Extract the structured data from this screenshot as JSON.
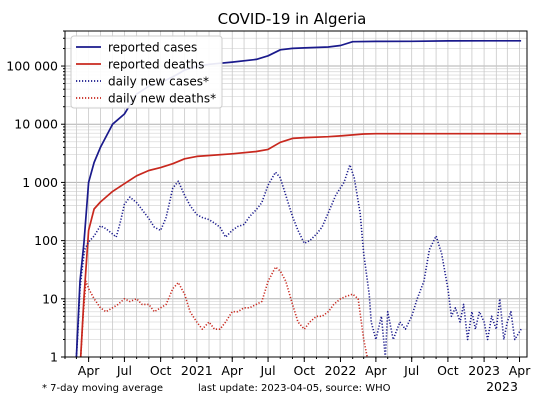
{
  "chart_data": {
    "type": "line",
    "title": "COVID-19 in Algeria",
    "xlabel": "",
    "ylabel": "",
    "y_scale": "log",
    "ylim": [
      1,
      400000
    ],
    "xlim": [
      "2020-02-01",
      "2023-04-20"
    ],
    "grid": true,
    "legend_position": "top-left",
    "y_ticks": [
      {
        "value": 1,
        "label": "1"
      },
      {
        "value": 10,
        "label": "10"
      },
      {
        "value": 100,
        "label": "100"
      },
      {
        "value": 1000,
        "label": "1 000"
      },
      {
        "value": 10000,
        "label": "10 000"
      },
      {
        "value": 100000,
        "label": "100 000"
      }
    ],
    "x_ticks": [
      {
        "date": "2020-04-01",
        "label": "Apr"
      },
      {
        "date": "2020-07-01",
        "label": "Jul"
      },
      {
        "date": "2020-10-01",
        "label": "Oct"
      },
      {
        "date": "2021-01-01",
        "label": "2021"
      },
      {
        "date": "2021-04-01",
        "label": "Apr"
      },
      {
        "date": "2021-07-01",
        "label": "Jul"
      },
      {
        "date": "2021-10-01",
        "label": "Oct"
      },
      {
        "date": "2022-01-01",
        "label": "2022"
      },
      {
        "date": "2022-04-01",
        "label": "Apr"
      },
      {
        "date": "2022-07-01",
        "label": "Jul"
      },
      {
        "date": "2022-10-01",
        "label": "Oct"
      },
      {
        "date": "2023-01-01",
        "label": "2023"
      },
      {
        "date": "2023-04-01",
        "label": "Apr"
      }
    ],
    "x_axis_year_label": "2023",
    "series": [
      {
        "name": "reported cases",
        "color": "#1a1a8c",
        "style": "solid",
        "points": [
          [
            "2020-03-01",
            1
          ],
          [
            "2020-03-10",
            20
          ],
          [
            "2020-03-20",
            90
          ],
          [
            "2020-04-01",
            1000
          ],
          [
            "2020-04-15",
            2200
          ],
          [
            "2020-05-01",
            4000
          ],
          [
            "2020-06-01",
            10000
          ],
          [
            "2020-07-01",
            15000
          ],
          [
            "2020-08-01",
            33000
          ],
          [
            "2020-09-01",
            45000
          ],
          [
            "2020-10-01",
            52000
          ],
          [
            "2020-11-01",
            65000
          ],
          [
            "2020-12-01",
            85000
          ],
          [
            "2021-01-01",
            99000
          ],
          [
            "2021-02-01",
            107000
          ],
          [
            "2021-04-01",
            117000
          ],
          [
            "2021-06-01",
            130000
          ],
          [
            "2021-07-01",
            150000
          ],
          [
            "2021-08-01",
            190000
          ],
          [
            "2021-09-01",
            201000
          ],
          [
            "2021-10-01",
            205000
          ],
          [
            "2021-12-01",
            212000
          ],
          [
            "2022-01-01",
            225000
          ],
          [
            "2022-02-01",
            262000
          ],
          [
            "2022-04-01",
            265000
          ],
          [
            "2022-07-01",
            266000
          ],
          [
            "2022-10-01",
            270000
          ],
          [
            "2023-01-01",
            271000
          ],
          [
            "2023-04-05",
            271800
          ]
        ]
      },
      {
        "name": "reported deaths",
        "color": "#c8281e",
        "style": "solid",
        "points": [
          [
            "2020-03-12",
            1
          ],
          [
            "2020-03-20",
            10
          ],
          [
            "2020-04-01",
            150
          ],
          [
            "2020-04-15",
            350
          ],
          [
            "2020-05-01",
            460
          ],
          [
            "2020-06-01",
            700
          ],
          [
            "2020-07-01",
            950
          ],
          [
            "2020-08-01",
            1300
          ],
          [
            "2020-09-01",
            1600
          ],
          [
            "2020-10-01",
            1800
          ],
          [
            "2020-11-01",
            2100
          ],
          [
            "2020-12-01",
            2550
          ],
          [
            "2021-01-01",
            2800
          ],
          [
            "2021-02-01",
            2900
          ],
          [
            "2021-04-01",
            3100
          ],
          [
            "2021-06-01",
            3400
          ],
          [
            "2021-07-01",
            3700
          ],
          [
            "2021-08-01",
            4900
          ],
          [
            "2021-09-01",
            5700
          ],
          [
            "2021-10-01",
            5900
          ],
          [
            "2021-12-01",
            6100
          ],
          [
            "2022-01-01",
            6300
          ],
          [
            "2022-03-01",
            6800
          ],
          [
            "2022-04-01",
            6870
          ],
          [
            "2022-07-01",
            6875
          ],
          [
            "2022-10-01",
            6880
          ],
          [
            "2023-01-01",
            6881
          ],
          [
            "2023-04-05",
            6881
          ]
        ]
      },
      {
        "name": "daily new cases*",
        "color": "#1a1a8c",
        "style": "dotted",
        "points": [
          [
            "2020-03-01",
            1
          ],
          [
            "2020-03-05",
            3
          ],
          [
            "2020-03-10",
            15
          ],
          [
            "2020-03-15",
            30
          ],
          [
            "2020-03-22",
            70
          ],
          [
            "2020-04-01",
            95
          ],
          [
            "2020-04-15",
            120
          ],
          [
            "2020-05-01",
            180
          ],
          [
            "2020-05-15",
            160
          ],
          [
            "2020-06-01",
            130
          ],
          [
            "2020-06-10",
            115
          ],
          [
            "2020-06-20",
            200
          ],
          [
            "2020-07-01",
            420
          ],
          [
            "2020-07-15",
            560
          ],
          [
            "2020-08-01",
            450
          ],
          [
            "2020-08-15",
            340
          ],
          [
            "2020-09-01",
            240
          ],
          [
            "2020-09-15",
            170
          ],
          [
            "2020-10-01",
            150
          ],
          [
            "2020-10-15",
            250
          ],
          [
            "2020-11-01",
            800
          ],
          [
            "2020-11-15",
            1050
          ],
          [
            "2020-12-01",
            600
          ],
          [
            "2020-12-15",
            400
          ],
          [
            "2021-01-01",
            280
          ],
          [
            "2021-01-15",
            250
          ],
          [
            "2021-02-01",
            230
          ],
          [
            "2021-02-15",
            200
          ],
          [
            "2021-03-01",
            170
          ],
          [
            "2021-03-15",
            115
          ],
          [
            "2021-04-01",
            150
          ],
          [
            "2021-04-15",
            175
          ],
          [
            "2021-05-01",
            190
          ],
          [
            "2021-05-15",
            260
          ],
          [
            "2021-06-01",
            340
          ],
          [
            "2021-06-15",
            450
          ],
          [
            "2021-07-01",
            900
          ],
          [
            "2021-07-20",
            1500
          ],
          [
            "2021-08-01",
            1200
          ],
          [
            "2021-08-15",
            600
          ],
          [
            "2021-09-01",
            260
          ],
          [
            "2021-09-15",
            150
          ],
          [
            "2021-10-01",
            90
          ],
          [
            "2021-10-15",
            100
          ],
          [
            "2021-11-01",
            130
          ],
          [
            "2021-11-15",
            170
          ],
          [
            "2021-12-01",
            300
          ],
          [
            "2021-12-20",
            600
          ],
          [
            "2022-01-10",
            1000
          ],
          [
            "2022-01-25",
            2000
          ],
          [
            "2022-02-05",
            1200
          ],
          [
            "2022-02-20",
            300
          ],
          [
            "2022-03-01",
            60
          ],
          [
            "2022-03-15",
            12
          ],
          [
            "2022-03-20",
            4
          ],
          [
            "2022-04-01",
            2
          ],
          [
            "2022-04-15",
            5
          ],
          [
            "2022-04-25",
            1
          ],
          [
            "2022-05-01",
            6
          ],
          [
            "2022-05-15",
            2
          ],
          [
            "2022-06-01",
            4
          ],
          [
            "2022-06-15",
            3
          ],
          [
            "2022-07-01",
            5
          ],
          [
            "2022-07-15",
            10
          ],
          [
            "2022-08-01",
            20
          ],
          [
            "2022-08-15",
            70
          ],
          [
            "2022-09-01",
            120
          ],
          [
            "2022-09-15",
            60
          ],
          [
            "2022-10-01",
            15
          ],
          [
            "2022-10-10",
            5
          ],
          [
            "2022-10-20",
            7
          ],
          [
            "2022-11-01",
            4
          ],
          [
            "2022-11-10",
            8
          ],
          [
            "2022-11-20",
            2
          ],
          [
            "2022-12-01",
            6
          ],
          [
            "2022-12-10",
            3
          ],
          [
            "2022-12-20",
            6
          ],
          [
            "2023-01-01",
            4
          ],
          [
            "2023-01-10",
            2
          ],
          [
            "2023-01-20",
            5
          ],
          [
            "2023-02-01",
            3
          ],
          [
            "2023-02-10",
            10
          ],
          [
            "2023-02-20",
            2
          ],
          [
            "2023-03-01",
            4
          ],
          [
            "2023-03-10",
            6
          ],
          [
            "2023-03-20",
            2
          ],
          [
            "2023-04-05",
            3
          ]
        ]
      },
      {
        "name": "daily new deaths*",
        "color": "#c8281e",
        "style": "dotted",
        "points": [
          [
            "2020-03-12",
            1
          ],
          [
            "2020-03-18",
            5
          ],
          [
            "2020-03-25",
            20
          ],
          [
            "2020-04-01",
            15
          ],
          [
            "2020-04-15",
            10
          ],
          [
            "2020-05-01",
            7
          ],
          [
            "2020-05-15",
            6
          ],
          [
            "2020-06-01",
            7
          ],
          [
            "2020-06-15",
            8
          ],
          [
            "2020-07-01",
            10
          ],
          [
            "2020-07-15",
            9
          ],
          [
            "2020-08-01",
            10
          ],
          [
            "2020-08-15",
            8
          ],
          [
            "2020-09-01",
            8
          ],
          [
            "2020-09-15",
            6
          ],
          [
            "2020-10-01",
            7
          ],
          [
            "2020-10-15",
            8
          ],
          [
            "2020-11-01",
            15
          ],
          [
            "2020-11-15",
            19
          ],
          [
            "2020-12-01",
            12
          ],
          [
            "2020-12-15",
            6
          ],
          [
            "2021-01-01",
            4
          ],
          [
            "2021-01-15",
            3
          ],
          [
            "2021-02-01",
            4
          ],
          [
            "2021-02-15",
            3
          ],
          [
            "2021-03-01",
            3
          ],
          [
            "2021-03-15",
            4
          ],
          [
            "2021-04-01",
            6
          ],
          [
            "2021-04-15",
            6
          ],
          [
            "2021-05-01",
            7
          ],
          [
            "2021-05-15",
            7
          ],
          [
            "2021-06-01",
            8
          ],
          [
            "2021-06-15",
            9
          ],
          [
            "2021-07-01",
            20
          ],
          [
            "2021-07-20",
            35
          ],
          [
            "2021-08-01",
            30
          ],
          [
            "2021-08-15",
            20
          ],
          [
            "2021-09-01",
            8
          ],
          [
            "2021-09-15",
            4
          ],
          [
            "2021-10-01",
            3
          ],
          [
            "2021-10-15",
            4
          ],
          [
            "2021-11-01",
            5
          ],
          [
            "2021-11-15",
            5
          ],
          [
            "2021-12-01",
            6
          ],
          [
            "2021-12-15",
            8
          ],
          [
            "2022-01-01",
            10
          ],
          [
            "2022-01-15",
            11
          ],
          [
            "2022-02-01",
            12
          ],
          [
            "2022-02-15",
            10
          ],
          [
            "2022-03-01",
            2
          ],
          [
            "2022-03-10",
            1
          ]
        ]
      }
    ],
    "footnote_left": "* 7-day moving average",
    "footnote_right": "last update: 2023-04-05, source: WHO"
  }
}
